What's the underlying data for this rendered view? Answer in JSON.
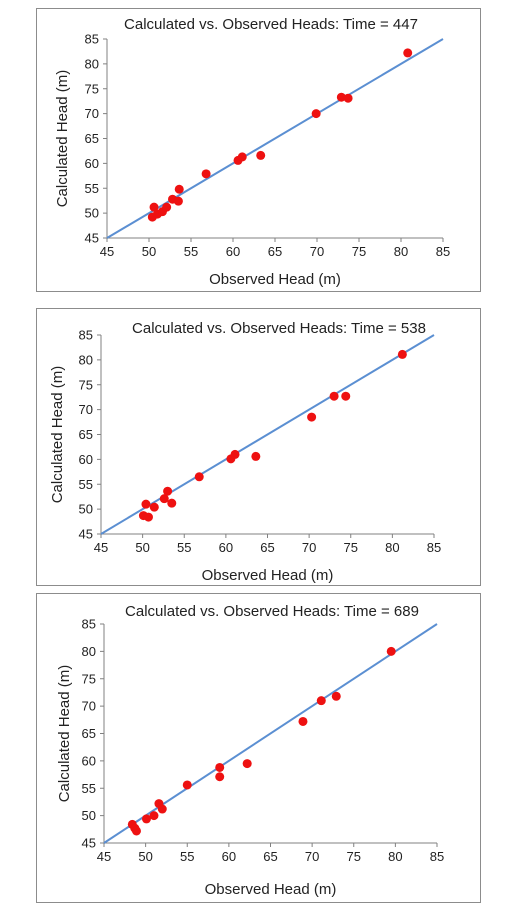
{
  "chart_data": [
    {
      "type": "scatter",
      "title": "Calculated vs. Observed Heads: Time = 447",
      "xlabel": "Observed Head (m)",
      "ylabel": "Calculated Head (m)",
      "xlim": [
        45,
        85
      ],
      "ylim": [
        45,
        85
      ],
      "xticks": [
        "45",
        "50",
        "55",
        "60",
        "65",
        "70",
        "75",
        "80",
        "85"
      ],
      "yticks": [
        "45",
        "50",
        "55",
        "60",
        "65",
        "70",
        "75",
        "80",
        "85"
      ],
      "grid": false,
      "legend": "none",
      "marker_color": "#ee1111",
      "line_color": "#5b8fd2",
      "reference_line": [
        [
          45,
          45
        ],
        [
          85,
          85
        ]
      ],
      "points": [
        {
          "x": 50.4,
          "y": 49.2
        },
        {
          "x": 50.6,
          "y": 51.2
        },
        {
          "x": 51.0,
          "y": 49.8
        },
        {
          "x": 51.6,
          "y": 50.3
        },
        {
          "x": 52.1,
          "y": 51.2
        },
        {
          "x": 52.8,
          "y": 52.8
        },
        {
          "x": 53.5,
          "y": 52.4
        },
        {
          "x": 53.6,
          "y": 54.8
        },
        {
          "x": 56.8,
          "y": 57.9
        },
        {
          "x": 60.6,
          "y": 60.6
        },
        {
          "x": 61.1,
          "y": 61.3
        },
        {
          "x": 63.3,
          "y": 61.6
        },
        {
          "x": 69.9,
          "y": 70.0
        },
        {
          "x": 72.9,
          "y": 73.3
        },
        {
          "x": 73.7,
          "y": 73.1
        },
        {
          "x": 80.8,
          "y": 82.2
        }
      ]
    },
    {
      "type": "scatter",
      "title": "Calculated vs. Observed Heads: Time = 538",
      "xlabel": "Observed Head (m)",
      "ylabel": "Calculated Head (m)",
      "xlim": [
        45,
        85
      ],
      "ylim": [
        45,
        85
      ],
      "xticks": [
        "45",
        "50",
        "55",
        "60",
        "65",
        "70",
        "75",
        "80",
        "85"
      ],
      "yticks": [
        "45",
        "50",
        "55",
        "60",
        "65",
        "70",
        "75",
        "80",
        "85"
      ],
      "grid": false,
      "legend": "none",
      "marker_color": "#ee1111",
      "line_color": "#5b8fd2",
      "reference_line": [
        [
          45,
          45
        ],
        [
          85,
          85
        ]
      ],
      "points": [
        {
          "x": 50.1,
          "y": 48.7
        },
        {
          "x": 50.4,
          "y": 51.0
        },
        {
          "x": 50.7,
          "y": 48.4
        },
        {
          "x": 51.4,
          "y": 50.4
        },
        {
          "x": 52.6,
          "y": 52.1
        },
        {
          "x": 53.0,
          "y": 53.6
        },
        {
          "x": 53.5,
          "y": 51.2
        },
        {
          "x": 56.8,
          "y": 56.5
        },
        {
          "x": 60.6,
          "y": 60.1
        },
        {
          "x": 61.1,
          "y": 61.0
        },
        {
          "x": 63.6,
          "y": 60.6
        },
        {
          "x": 70.3,
          "y": 68.5
        },
        {
          "x": 73.0,
          "y": 72.7
        },
        {
          "x": 74.4,
          "y": 72.7
        },
        {
          "x": 81.2,
          "y": 81.1
        }
      ]
    },
    {
      "type": "scatter",
      "title": "Calculated vs. Observed Heads: Time = 689",
      "xlabel": "Observed Head (m)",
      "ylabel": "Calculated Head (m)",
      "xlim": [
        45,
        85
      ],
      "ylim": [
        45,
        85
      ],
      "xticks": [
        "45",
        "50",
        "55",
        "60",
        "65",
        "70",
        "75",
        "80",
        "85"
      ],
      "yticks": [
        "45",
        "50",
        "55",
        "60",
        "65",
        "70",
        "75",
        "80",
        "85"
      ],
      "grid": false,
      "legend": "none",
      "marker_color": "#ee1111",
      "line_color": "#5b8fd2",
      "reference_line": [
        [
          45,
          45
        ],
        [
          85,
          85
        ]
      ],
      "points": [
        {
          "x": 48.4,
          "y": 48.4
        },
        {
          "x": 48.7,
          "y": 47.7
        },
        {
          "x": 48.9,
          "y": 47.2
        },
        {
          "x": 50.1,
          "y": 49.4
        },
        {
          "x": 51.0,
          "y": 50.0
        },
        {
          "x": 51.6,
          "y": 52.2
        },
        {
          "x": 52.0,
          "y": 51.2
        },
        {
          "x": 55.0,
          "y": 55.6
        },
        {
          "x": 58.9,
          "y": 58.8
        },
        {
          "x": 58.9,
          "y": 57.1
        },
        {
          "x": 62.2,
          "y": 59.5
        },
        {
          "x": 68.9,
          "y": 67.2
        },
        {
          "x": 71.1,
          "y": 71.0
        },
        {
          "x": 72.9,
          "y": 71.8
        },
        {
          "x": 79.5,
          "y": 80.0
        }
      ]
    }
  ]
}
